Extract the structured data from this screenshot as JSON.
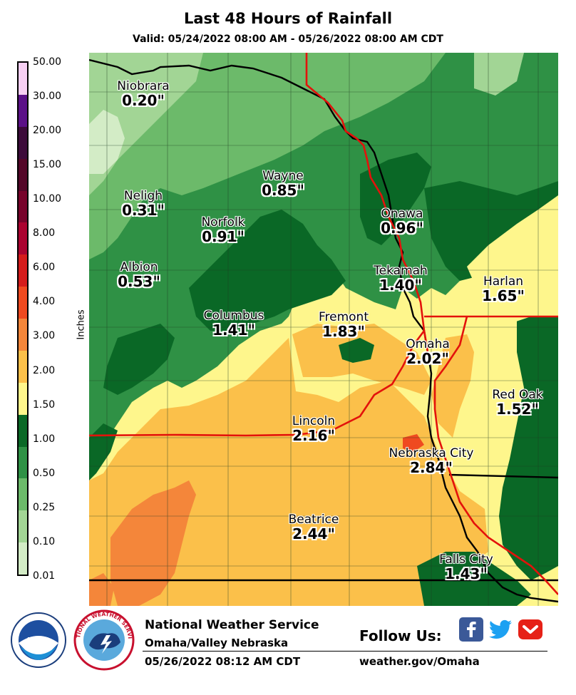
{
  "title": "Last 48 Hours of Rainfall",
  "subtitle": "Valid: 05/24/2022 08:00 AM - 05/26/2022 08:00 AM CDT",
  "legend": {
    "unit": "Inches",
    "labels": [
      "50.00",
      "30.00",
      "20.00",
      "15.00",
      "10.00",
      "8.00",
      "6.00",
      "4.00",
      "3.00",
      "2.00",
      "1.50",
      "1.00",
      "0.50",
      "0.25",
      "0.10",
      "0.01"
    ],
    "colors": [
      "#f7d0f3",
      "#5b1187",
      "#3c0b3a",
      "#530628",
      "#77032b",
      "#aa0330",
      "#d41c1c",
      "#ef4a20",
      "#f4863a",
      "#fbc04a",
      "#fef68c",
      "#0a6826",
      "#2f9145",
      "#6cba6a",
      "#a2d595",
      "#d3ecc6"
    ]
  },
  "cities": [
    {
      "name": "Niobrara",
      "value": "0.20\""
    },
    {
      "name": "Neligh",
      "value": "0.31\""
    },
    {
      "name": "Wayne",
      "value": "0.85\""
    },
    {
      "name": "Norfolk",
      "value": "0.91\""
    },
    {
      "name": "Onawa",
      "value": "0.96\""
    },
    {
      "name": "Albion",
      "value": "0.53\""
    },
    {
      "name": "Tekamah",
      "value": "1.40\""
    },
    {
      "name": "Harlan",
      "value": "1.65\""
    },
    {
      "name": "Columbus",
      "value": "1.41\""
    },
    {
      "name": "Fremont",
      "value": "1.83\""
    },
    {
      "name": "Omaha",
      "value": "2.02\""
    },
    {
      "name": "Red Oak",
      "value": "1.52\""
    },
    {
      "name": "Lincoln",
      "value": "2.16\""
    },
    {
      "name": "Nebraska City",
      "value": "2.84\""
    },
    {
      "name": "Beatrice",
      "value": "2.44\""
    },
    {
      "name": "Falls City",
      "value": "1.43\""
    }
  ],
  "footer": {
    "org": "National Weather Service",
    "office": "Omaha/Valley Nebraska",
    "timestamp": "05/26/2022 08:12 AM CDT",
    "follow": "Follow Us:",
    "url": "weather.gov/Omaha",
    "noaa_logo_text": "NOAA",
    "nws_seal_text": "NATIONAL WEATHER SERVICE"
  },
  "social": [
    "facebook-icon",
    "twitter-icon",
    "youtube-icon"
  ]
}
